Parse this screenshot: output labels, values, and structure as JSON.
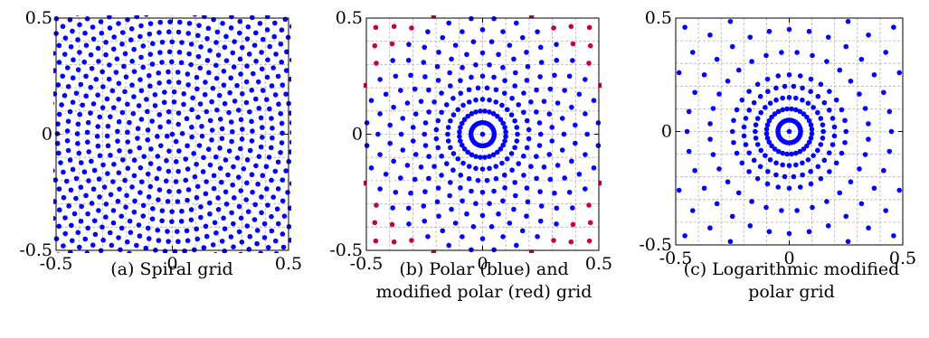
{
  "chart_data": [
    {
      "type": "scatter",
      "title": "",
      "caption": "(a) Spiral grid",
      "xlabel": "",
      "ylabel": "",
      "xlim": [
        -0.5,
        0.5
      ],
      "ylim": [
        -0.5,
        0.5
      ],
      "xticks": [
        "-0.5",
        "0",
        "0.5"
      ],
      "yticks": [
        "-0.5",
        "0",
        "0.5"
      ],
      "grid": true,
      "series": [
        {
          "color": "#0000ff",
          "grid_kind": "spiral",
          "radial_spacing": 0.043,
          "arc_spacing": 0.042
        }
      ]
    },
    {
      "type": "scatter",
      "title": "",
      "caption": "(b) Polar (blue) and\nmodified polar (red) grid",
      "xlabel": "",
      "ylabel": "",
      "xlim": [
        -0.5,
        0.5
      ],
      "ylim": [
        -0.5,
        0.5
      ],
      "xticks": [
        "-0.5",
        "0",
        "0.5"
      ],
      "yticks": [
        "-0.5",
        "0",
        "0.5"
      ],
      "grid": true,
      "series": [
        {
          "color": "#0000ff",
          "grid_kind": "polar",
          "radii": [
            0.05,
            0.1,
            0.15,
            0.2,
            0.25,
            0.3,
            0.35,
            0.4,
            0.45,
            0.5
          ],
          "points_per_ring": 32
        },
        {
          "color": "#c8003c",
          "grid_kind": "modified-polar-corners",
          "radii": [
            0.55,
            0.6,
            0.65,
            0.7
          ],
          "points_per_ring": 32
        }
      ]
    },
    {
      "type": "scatter",
      "title": "",
      "caption": "(c) Logarithmic modified\npolar grid",
      "xlabel": "",
      "ylabel": "",
      "xlim": [
        -0.5,
        0.5
      ],
      "ylim": [
        -0.5,
        0.5
      ],
      "xticks": [
        "-0.5",
        "0",
        "0.5"
      ],
      "yticks": [
        "-0.5",
        "0",
        "0.5"
      ],
      "grid": true,
      "series": [
        {
          "color": "#0000ff",
          "grid_kind": "log-polar",
          "radii": [
            0.05,
            0.1,
            0.15,
            0.2,
            0.25,
            0.35,
            0.45,
            0.55,
            0.65
          ],
          "points_per_ring": 32
        }
      ]
    }
  ]
}
